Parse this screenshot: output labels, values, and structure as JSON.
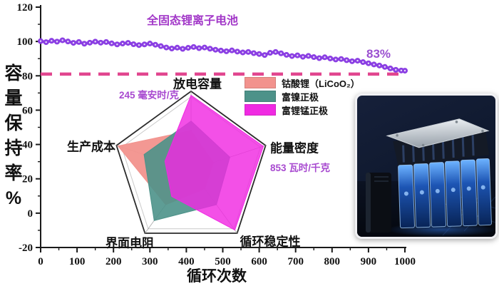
{
  "figure_title": "全固态锂离子电池",
  "chart_data": [
    {
      "type": "line",
      "title": "全固态锂离子电池",
      "xlabel": "循环次数",
      "ylabel": "容量保持率%",
      "ylabel_chars": [
        "容",
        "量",
        "保",
        "持",
        "率",
        "%"
      ],
      "xlim": [
        0,
        1000
      ],
      "ylim": [
        -20,
        120
      ],
      "x_ticks": [
        0,
        100,
        200,
        300,
        400,
        500,
        600,
        700,
        800,
        900,
        1000
      ],
      "x_minor_ticks": [
        50,
        150,
        250,
        350,
        450,
        550,
        650,
        750,
        850,
        950
      ],
      "y_ticks": [
        120,
        100,
        80,
        60,
        40,
        20,
        0,
        -20
      ],
      "y_minor_ticks": [
        110,
        90,
        70,
        50,
        30,
        10,
        -10
      ],
      "grid": false,
      "series": [
        {
          "name": "全固态锂离子电池",
          "color": "#8b3fe3",
          "marker": "circle",
          "x": [
            0,
            15,
            30,
            45,
            60,
            75,
            90,
            105,
            120,
            135,
            150,
            165,
            180,
            195,
            210,
            225,
            240,
            255,
            270,
            285,
            300,
            315,
            330,
            345,
            360,
            375,
            390,
            405,
            420,
            435,
            450,
            465,
            480,
            495,
            510,
            525,
            540,
            555,
            570,
            585,
            600,
            615,
            630,
            645,
            660,
            675,
            690,
            705,
            720,
            735,
            750,
            765,
            780,
            795,
            810,
            825,
            840,
            855,
            870,
            885,
            900,
            915,
            930,
            945,
            960,
            975,
            990,
            1000
          ],
          "y": [
            100.2,
            99.6,
            100.4,
            99.9,
            100.7,
            100.0,
            99.2,
            99.7,
            98.7,
            99.3,
            99.9,
            99.3,
            99.7,
            98.9,
            98.3,
            98.8,
            99.2,
            98.4,
            97.9,
            98.3,
            98.8,
            98.1,
            97.3,
            96.5,
            95.9,
            96.4,
            95.7,
            96.3,
            96.8,
            96.1,
            96.5,
            95.8,
            95.2,
            94.7,
            94.3,
            94.8,
            94.1,
            93.6,
            93.9,
            93.2,
            92.7,
            92.1,
            93.4,
            93.9,
            93.1,
            92.2,
            91.5,
            91.9,
            91.1,
            91.6,
            90.9,
            90.3,
            90.8,
            90.1,
            89.5,
            89.8,
            89.1,
            88.5,
            88.8,
            88.0,
            87.3,
            86.6,
            86.0,
            85.2,
            84.3,
            83.5,
            83.1,
            83.0
          ]
        }
      ],
      "reference_line": {
        "y": 81,
        "color": "#e1468f",
        "style": "dashed"
      },
      "end_label": {
        "text": "83%",
        "color": "#9a4fd0"
      }
    },
    {
      "type": "radar",
      "categories": [
        "放电容量",
        "能量密度",
        "循环稳定性",
        "界面电阻",
        "生产成本"
      ],
      "max": 100,
      "series": [
        {
          "name": "钴酸锂（LiCoO₂）",
          "color": "#f2928d",
          "values": [
            50,
            30,
            30,
            55,
            98
          ]
        },
        {
          "name": "富镍正极",
          "color": "#4d9289",
          "values": [
            62,
            52,
            55,
            80,
            63
          ]
        },
        {
          "name": "富锂锰正极",
          "color": "#f02ae2",
          "values": [
            95,
            97,
            95,
            42,
            35
          ]
        }
      ],
      "annotations": [
        {
          "text": "245 毫安时/克",
          "axis": "放电容量",
          "color": "#a84ad0"
        },
        {
          "text": "853 瓦时/千克",
          "axis": "能量密度",
          "color": "#a84ad0"
        }
      ],
      "legend_position": "top-right"
    }
  ],
  "photo": {
    "description": "全固态电池模组照片",
    "accent_color": "#2f6fd8"
  }
}
